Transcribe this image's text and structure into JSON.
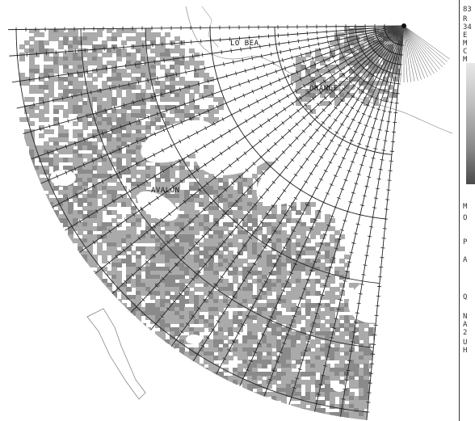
{
  "map": {
    "place_labels": [
      "LO BEA",
      "ORANGE",
      "AVALON"
    ]
  },
  "side_panel": {
    "text_lines": [
      "83",
      "R",
      "34",
      "E",
      "M",
      "C",
      "M",
      "M",
      "O",
      "P",
      "A",
      "Q",
      "N",
      "A",
      "2",
      "U",
      "H"
    ]
  },
  "colors": {
    "echo_light": "#aaaaaa",
    "echo_medium": "#8a8a8a",
    "echo_dark": "#6e6e6e",
    "grid_lines": "#222222",
    "coastline": "#9a9a9a",
    "background": "#ffffff"
  }
}
